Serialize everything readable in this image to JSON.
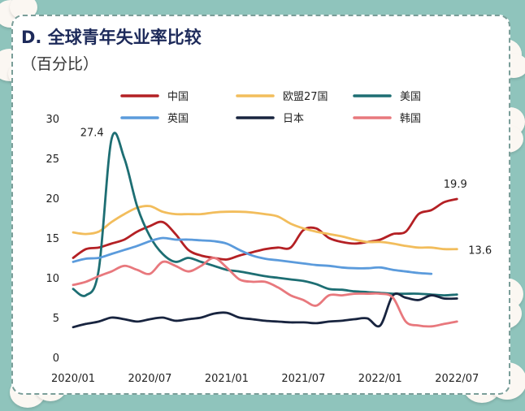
{
  "header": {
    "title": "D. 全球青年失业率比较",
    "subtitle": "（百分比）"
  },
  "colors": {
    "background": "#8fc4bc",
    "card": "#ffffff"
  },
  "chart_data": {
    "type": "line",
    "title": "D. 全球青年失业率比较",
    "ylabel": "（百分比）",
    "xlabel": "",
    "ylim": [
      0,
      30
    ],
    "yticks": [
      0,
      5,
      10,
      15,
      20,
      25,
      30
    ],
    "xlim": [
      "2020/01",
      "2022/08"
    ],
    "xticks": [
      "2020/01",
      "2020/07",
      "2021/01",
      "2021/07",
      "2022/01",
      "2022/07"
    ],
    "grid": false,
    "legend": "top",
    "x": [
      "2020/01",
      "2020/02",
      "2020/03",
      "2020/04",
      "2020/05",
      "2020/06",
      "2020/07",
      "2020/08",
      "2020/09",
      "2020/10",
      "2020/11",
      "2020/12",
      "2021/01",
      "2021/02",
      "2021/03",
      "2021/04",
      "2021/05",
      "2021/06",
      "2021/07",
      "2021/08",
      "2021/09",
      "2021/10",
      "2021/11",
      "2021/12",
      "2022/01",
      "2022/02",
      "2022/03",
      "2022/04",
      "2022/05",
      "2022/06",
      "2022/07"
    ],
    "series": [
      {
        "name": "中国",
        "color": "#b42024",
        "values": [
          12.5,
          13.6,
          13.8,
          14.3,
          14.8,
          15.8,
          16.5,
          17.0,
          15.5,
          13.5,
          12.8,
          12.5,
          12.3,
          12.8,
          13.2,
          13.6,
          13.8,
          13.8,
          16.0,
          16.2,
          15.0,
          14.5,
          14.3,
          14.5,
          14.8,
          15.5,
          15.8,
          18.0,
          18.5,
          19.5,
          19.9
        ]
      },
      {
        "name": "欧盟27国",
        "color": "#f2bd5c",
        "values": [
          15.7,
          15.5,
          15.8,
          17.0,
          18.0,
          18.8,
          19.0,
          18.3,
          18.0,
          18.0,
          18.0,
          18.2,
          18.3,
          18.3,
          18.2,
          18.0,
          17.7,
          16.8,
          16.2,
          15.8,
          15.5,
          15.2,
          14.8,
          14.5,
          14.5,
          14.3,
          14.0,
          13.8,
          13.8,
          13.6,
          13.6
        ]
      },
      {
        "name": "美国",
        "color": "#1d6e73",
        "values": [
          8.6,
          7.8,
          11.0,
          27.4,
          25.0,
          19.0,
          15.2,
          13.0,
          12.0,
          12.5,
          12.0,
          11.5,
          11.0,
          10.8,
          10.5,
          10.2,
          10.0,
          9.8,
          9.6,
          9.2,
          8.6,
          8.5,
          8.3,
          8.2,
          8.1,
          8.0,
          8.0,
          8.0,
          7.9,
          7.8,
          7.9
        ]
      },
      {
        "name": "英国",
        "color": "#5b9bdc",
        "values": [
          12.0,
          12.4,
          12.5,
          13.0,
          13.5,
          14.0,
          14.6,
          15.0,
          14.8,
          14.8,
          14.7,
          14.6,
          14.3,
          13.5,
          12.8,
          12.4,
          12.2,
          12.0,
          11.8,
          11.6,
          11.5,
          11.3,
          11.2,
          11.2,
          11.3,
          11.0,
          10.8,
          10.6,
          10.5,
          null,
          null
        ]
      },
      {
        "name": "日本",
        "color": "#18243f",
        "values": [
          3.8,
          4.2,
          4.5,
          5.0,
          4.8,
          4.5,
          4.8,
          5.0,
          4.6,
          4.8,
          5.0,
          5.5,
          5.6,
          5.0,
          4.8,
          4.6,
          4.5,
          4.4,
          4.4,
          4.3,
          4.5,
          4.6,
          4.8,
          4.9,
          4.0,
          7.8,
          7.5,
          7.2,
          7.8,
          7.4,
          7.4
        ]
      },
      {
        "name": "韩国",
        "color": "#e8787d",
        "values": [
          9.1,
          9.5,
          10.2,
          10.8,
          11.5,
          11.0,
          10.5,
          12.0,
          11.5,
          10.8,
          11.5,
          12.5,
          11.3,
          9.8,
          9.5,
          9.5,
          8.8,
          7.8,
          7.2,
          6.5,
          7.8,
          7.8,
          8.0,
          8.0,
          8.0,
          7.5,
          4.5,
          4.0,
          3.9,
          4.2,
          4.5
        ]
      }
    ],
    "annotations": [
      {
        "text": "27.4",
        "series": "美国",
        "x": "2020/04",
        "y": 27.4
      },
      {
        "text": "19.9",
        "series": "中国",
        "x": "2022/07",
        "y": 19.9
      },
      {
        "text": "13.6",
        "series": "欧盟27国",
        "x": "2022/07",
        "y": 13.6
      }
    ]
  }
}
